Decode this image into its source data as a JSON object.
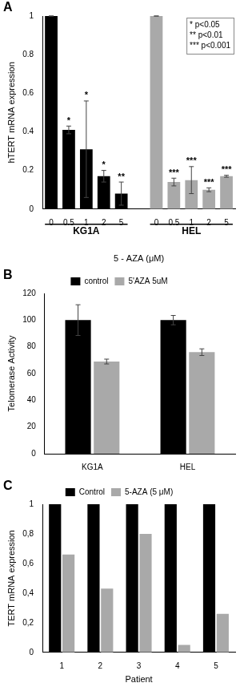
{
  "chart_data": [
    {
      "panel": "A",
      "type": "bar",
      "y_label": "hTERT mRNA expression",
      "x_label": "5 - AZA (μM)",
      "ylim": [
        0,
        1
      ],
      "yticks": [
        0,
        0.2,
        0.4,
        0.6,
        0.8,
        1
      ],
      "grid": false,
      "legend": "upper right",
      "significance_legend": [
        "* p<0.05",
        "** p<0.01",
        "*** p<0.001"
      ],
      "groups": [
        {
          "name": "KG1A",
          "color": "#000000",
          "categories": [
            "0",
            "0.5",
            "1",
            "2",
            "5"
          ],
          "values": [
            1,
            0.41,
            0.31,
            0.17,
            0.08
          ],
          "errors": [
            0,
            0.02,
            0.25,
            0.03,
            0.06
          ],
          "significance": [
            null,
            "*",
            "*",
            "*",
            "**"
          ]
        },
        {
          "name": "HEL",
          "color": "#a9a9a9",
          "categories": [
            "0",
            "0.5",
            "1",
            "2",
            "5"
          ],
          "values": [
            1,
            0.14,
            0.15,
            0.1,
            0.17
          ],
          "errors": [
            0,
            0.02,
            0.07,
            0.01,
            0.005
          ],
          "significance": [
            null,
            "***",
            "***",
            "***",
            "***"
          ]
        }
      ]
    },
    {
      "panel": "B",
      "type": "bar",
      "y_label": "Telomerase Activity",
      "categories": [
        "KG1A",
        "HEL"
      ],
      "series": [
        {
          "name": "control",
          "color": "#000000",
          "values": [
            100,
            100
          ],
          "errors": [
            11.5,
            3.5
          ]
        },
        {
          "name": "5'AZA 5uM",
          "color": "#a9a9a9",
          "values": [
            69,
            76
          ],
          "errors": [
            1.8,
            2.5
          ]
        }
      ],
      "ylim": [
        0,
        120
      ],
      "yticks": [
        0,
        20,
        40,
        60,
        80,
        100,
        120
      ],
      "grid": false,
      "legend": "top"
    },
    {
      "panel": "C",
      "type": "bar",
      "y_label": "TERT mRNA expression",
      "x_label": "Patient",
      "categories": [
        "1",
        "2",
        "3",
        "4",
        "5"
      ],
      "series": [
        {
          "name": "Control",
          "color": "#000000",
          "values": [
            1,
            1,
            1,
            1,
            1
          ]
        },
        {
          "name": "5-AZA (5 μM)",
          "color": "#a9a9a9",
          "values": [
            0.66,
            0.43,
            0.8,
            0.05,
            0.26
          ]
        }
      ],
      "ylim": [
        0,
        1
      ],
      "yticks": [
        0,
        {
          "value": 0.2,
          "label": "0,2"
        },
        {
          "value": 0.4,
          "label": "0,4"
        },
        {
          "value": 0.6,
          "label": "0,6"
        },
        {
          "value": 0.8,
          "label": "0,8"
        },
        1
      ],
      "grid": false,
      "legend": "top"
    }
  ]
}
